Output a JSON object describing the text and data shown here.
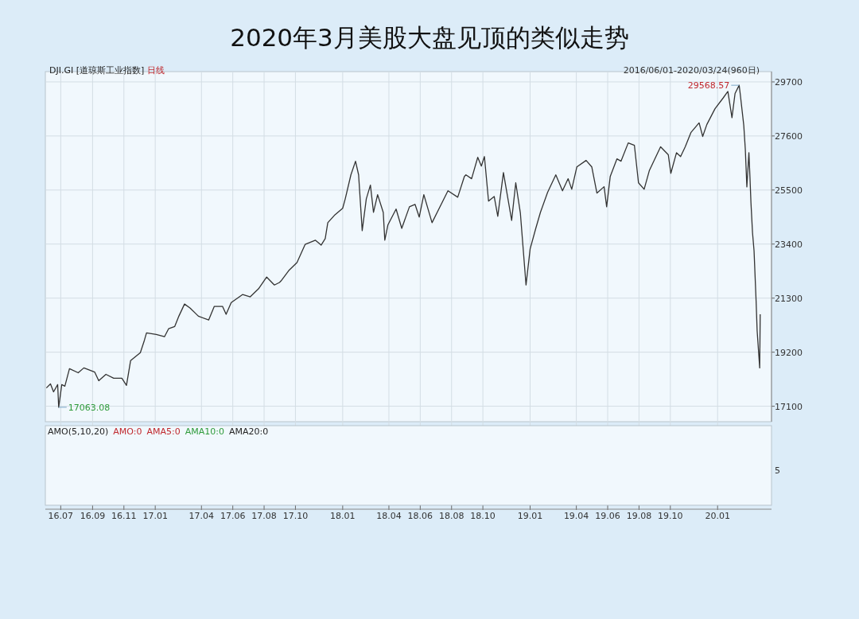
{
  "chart_data": [
    {
      "type": "line",
      "title": "2020年3月美股大盘见顶的类似走势",
      "annotations": [
        "DJI.GI [道琼斯工业指数]",
        "日线",
        "2016/06/01-2020/03/24(960日)",
        "29568.57",
        "17063.08"
      ],
      "x": [
        "2016-06-03",
        "2016-06-11",
        "2016-06-17",
        "2016-06-25",
        "2016-06-27",
        "2016-07-03",
        "2016-07-09",
        "2016-07-18",
        "2016-08-04",
        "2016-08-15",
        "2016-09-05",
        "2016-09-13",
        "2016-09-27",
        "2016-10-12",
        "2016-10-28",
        "2016-11-06",
        "2016-11-14",
        "2016-12-03",
        "2016-12-11",
        "2016-12-15",
        "2017-01-03",
        "2017-01-19",
        "2017-01-27",
        "2017-02-08",
        "2017-02-16",
        "2017-02-27",
        "2017-03-10",
        "2017-03-26",
        "2017-04-15",
        "2017-04-26",
        "2017-05-12",
        "2017-05-19",
        "2017-05-29",
        "2017-06-20",
        "2017-07-05",
        "2017-07-21",
        "2017-08-06",
        "2017-08-21",
        "2017-08-31",
        "2017-09-03",
        "2017-09-18",
        "2017-10-04",
        "2017-10-20",
        "2017-11-09",
        "2017-11-20",
        "2017-11-28",
        "2017-12-03",
        "2017-12-17",
        "2018-01-01",
        "2018-01-06",
        "2018-01-17",
        "2018-01-26",
        "2018-02-01",
        "2018-02-05",
        "2018-02-08",
        "2018-02-16",
        "2018-02-24",
        "2018-03-02",
        "2018-03-10",
        "2018-03-21",
        "2018-03-24",
        "2018-03-30",
        "2018-04-15",
        "2018-04-26",
        "2018-05-11",
        "2018-05-22",
        "2018-05-30",
        "2018-06-08",
        "2018-06-24",
        "2018-07-08",
        "2018-07-25",
        "2018-08-13",
        "2018-08-26",
        "2018-08-29",
        "2018-09-09",
        "2018-09-21",
        "2018-09-28",
        "2018-10-04",
        "2018-10-12",
        "2018-10-23",
        "2018-10-30",
        "2018-11-10",
        "2018-11-26",
        "2018-12-04",
        "2018-12-13",
        "2018-12-24",
        "2019-01-01",
        "2019-01-12",
        "2019-01-21",
        "2019-02-04",
        "2019-02-20",
        "2019-03-05",
        "2019-03-16",
        "2019-03-23",
        "2019-04-02",
        "2019-04-20",
        "2019-05-01",
        "2019-05-11",
        "2019-05-25",
        "2019-05-30",
        "2019-06-06",
        "2019-06-19",
        "2019-06-27",
        "2019-07-11",
        "2019-07-23",
        "2019-07-31",
        "2019-08-11",
        "2019-08-21",
        "2019-09-12",
        "2019-09-27",
        "2019-10-02",
        "2019-10-13",
        "2019-10-21",
        "2019-10-30",
        "2019-11-10",
        "2019-11-26",
        "2019-12-03",
        "2019-12-11",
        "2019-12-27",
        "2020-01-12",
        "2020-01-21",
        "2020-01-29",
        "2020-02-04",
        "2020-02-12",
        "2020-02-14",
        "2020-02-21",
        "2020-02-24",
        "2020-02-27",
        "2020-03-02",
        "2020-03-04",
        "2020-03-06",
        "2020-03-09",
        "2020-03-12",
        "2020-03-16",
        "2020-03-18",
        "2020-03-23",
        "2020-03-24"
      ],
      "series": [
        {
          "axis": "y2",
          "color": "#333333",
          "values": [
            17810,
            17970,
            17660,
            17940,
            17060,
            17940,
            17880,
            18560,
            18400,
            18590,
            18430,
            18090,
            18340,
            18190,
            18190,
            17910,
            18870,
            19180,
            19670,
            19950,
            19890,
            19800,
            20110,
            20200,
            20600,
            21070,
            20910,
            20600,
            20450,
            20980,
            20980,
            20670,
            21130,
            21440,
            21350,
            21660,
            22120,
            21810,
            21910,
            21970,
            22370,
            22680,
            23390,
            23550,
            23360,
            23610,
            24230,
            24540,
            24790,
            25160,
            26090,
            26620,
            26090,
            24850,
            23920,
            25160,
            25690,
            24630,
            25320,
            24630,
            23550,
            24140,
            24760,
            24010,
            24850,
            24940,
            24450,
            25320,
            24230,
            24790,
            25470,
            25220,
            26030,
            26090,
            25940,
            26770,
            26430,
            26800,
            25070,
            25250,
            24480,
            26180,
            24320,
            25780,
            24600,
            21810,
            23210,
            24010,
            24630,
            25410,
            26090,
            25470,
            25940,
            25530,
            26400,
            26650,
            26400,
            25380,
            25630,
            24850,
            26030,
            26710,
            26620,
            27330,
            27240,
            25780,
            25530,
            26250,
            27180,
            26870,
            26150,
            26950,
            26800,
            27180,
            27730,
            28110,
            27580,
            28040,
            28660,
            29080,
            29330,
            28310,
            29250,
            29570,
            29250,
            28010,
            27080,
            25620,
            26950,
            26020,
            25000,
            23850,
            23140,
            21190,
            20040,
            18590,
            20670
          ]
        }
      ],
      "xlim": [
        "2016-06-01",
        "2020-04-15"
      ],
      "xticks": [
        {
          "value": "2016-07-01",
          "label": "16.07"
        },
        {
          "value": "2016-09-01",
          "label": "16.09"
        },
        {
          "value": "2016-11-01",
          "label": "16.11"
        },
        {
          "value": "2017-01-01",
          "label": "17.01"
        },
        {
          "value": "2017-04-01",
          "label": "17.04"
        },
        {
          "value": "2017-06-01",
          "label": "17.06"
        },
        {
          "value": "2017-08-01",
          "label": "17.08"
        },
        {
          "value": "2017-10-01",
          "label": "17.10"
        },
        {
          "value": "2018-01-01",
          "label": "18.01"
        },
        {
          "value": "2018-04-01",
          "label": "18.04"
        },
        {
          "value": "2018-06-01",
          "label": "18.06"
        },
        {
          "value": "2018-08-01",
          "label": "18.08"
        },
        {
          "value": "2018-10-01",
          "label": "18.10"
        },
        {
          "value": "2019-01-01",
          "label": "19.01"
        },
        {
          "value": "2019-04-01",
          "label": "19.04"
        },
        {
          "value": "2019-06-01",
          "label": "19.06"
        },
        {
          "value": "2019-08-01",
          "label": "19.08"
        },
        {
          "value": "2019-10-01",
          "label": "19.10"
        },
        {
          "value": "2020-01-01",
          "label": "20.01"
        }
      ],
      "y2lim": [
        16500,
        30100
      ],
      "y2ticks": [
        17100,
        19200,
        21300,
        23400,
        25500,
        27600,
        29700
      ],
      "grid": true
    },
    {
      "type": "other",
      "annotations": [
        "AMO(5,10,20)",
        "AMO:0",
        "AMA5:0",
        "AMA10:0",
        "AMA20:0",
        "5"
      ]
    }
  ]
}
